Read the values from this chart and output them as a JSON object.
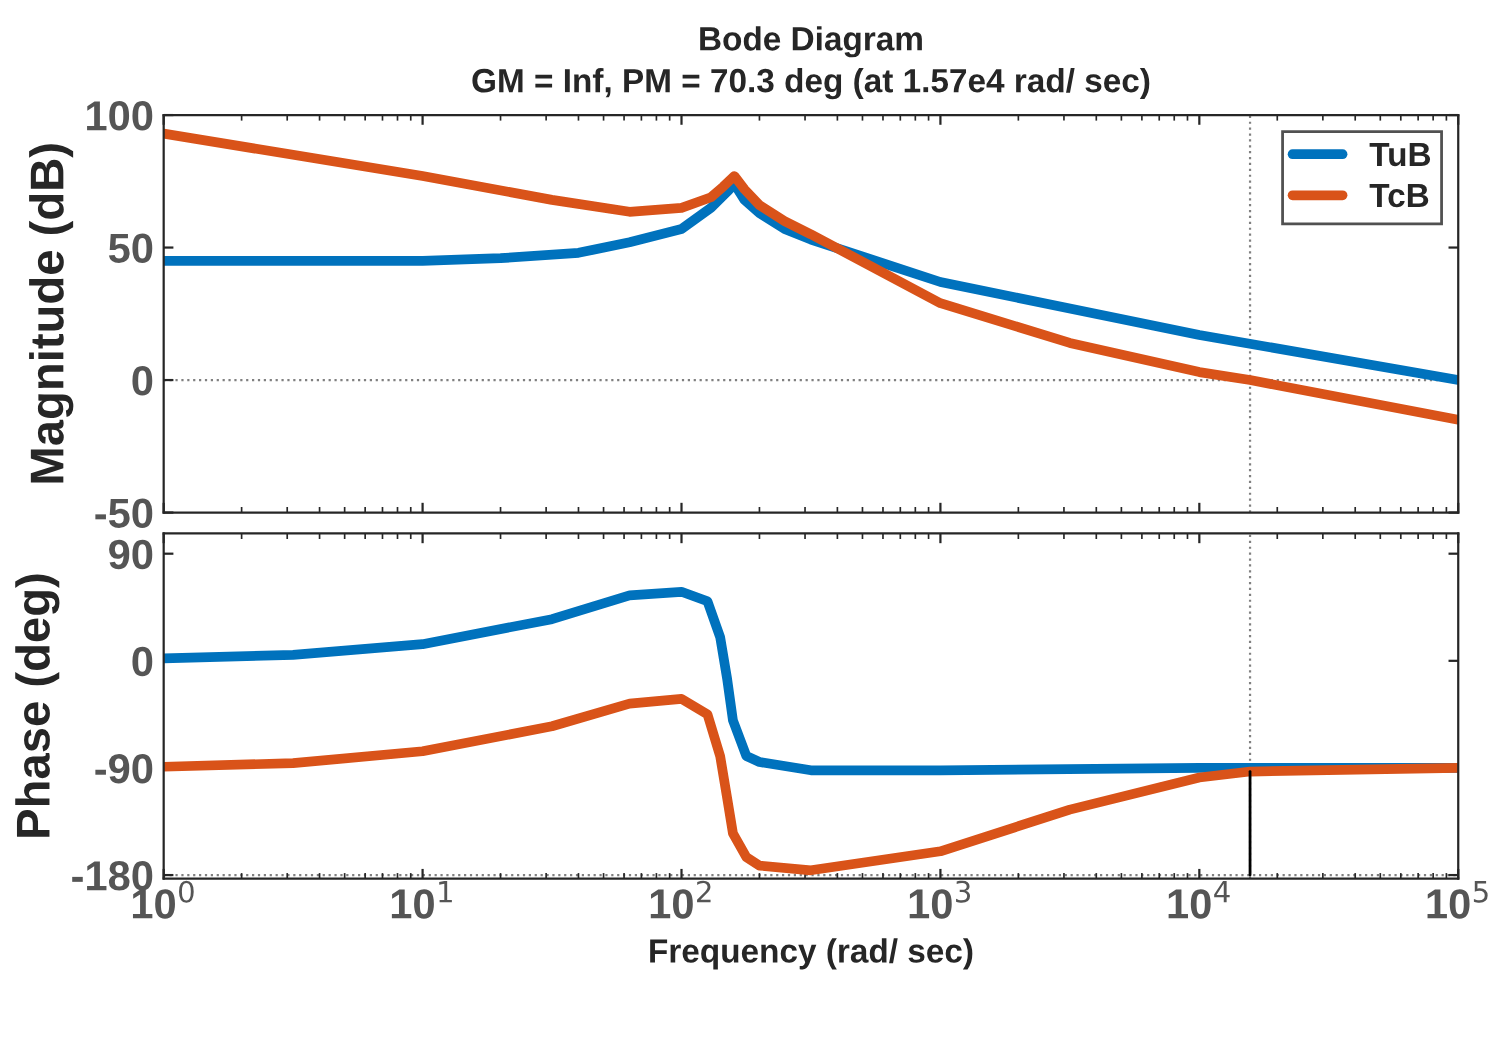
{
  "chart_data": [
    {
      "type": "line",
      "title": "Bode Diagram",
      "subtitle": "GM = Inf, PM = 70.3 deg (at 1.57e4 rad/ sec)",
      "ylabel": "Magnitude (dB)",
      "log": "x",
      "xlim": [
        1,
        100000
      ],
      "ylim": [
        -50,
        100
      ],
      "yticks": [
        -50,
        0,
        50,
        100
      ],
      "tick_labels": "y",
      "legend": "top right",
      "grid": false,
      "line_style": "solid",
      "marker": "none",
      "series": [
        {
          "name": "TuB",
          "color": "#0072bd",
          "x": [
            1,
            3.16,
            10,
            20,
            40,
            63,
            100,
            130,
            150,
            160,
            175,
            200,
            250,
            316,
            1000,
            10000,
            100000
          ],
          "values": [
            45,
            45,
            45,
            46,
            48,
            52,
            57,
            65,
            71,
            74,
            68,
            63,
            57,
            53,
            37,
            17,
            0
          ]
        },
        {
          "name": "TcB",
          "color": "#d95319",
          "x": [
            1,
            3.16,
            10,
            31.6,
            63,
            100,
            130,
            145,
            160,
            175,
            200,
            250,
            316,
            1000,
            3160,
            10000,
            15700,
            100000
          ],
          "values": [
            93,
            85,
            77,
            68,
            63.5,
            65,
            69,
            73,
            77,
            72,
            66,
            60,
            55,
            29,
            14,
            3,
            0,
            -15
          ]
        }
      ],
      "ref_lines": [
        {
          "axis": "y",
          "value": 0,
          "color": "#808080",
          "line_style": "dotted"
        },
        {
          "axis": "x",
          "value": 15700,
          "color": "#808080",
          "line_style": "dotted"
        }
      ]
    },
    {
      "type": "line",
      "xlabel": "Frequency (rad/ sec)",
      "ylabel": "Phase (deg)",
      "log": "x",
      "xlim": [
        1,
        100000
      ],
      "xticks": [
        {
          "value": 1,
          "label": "10$^{0}$"
        },
        {
          "value": 10,
          "label": "10$^{1}$"
        },
        {
          "value": 100,
          "label": "10$^{2}$"
        },
        {
          "value": 1000,
          "label": "10$^{3}$"
        },
        {
          "value": 10000,
          "label": "10$^{4}$"
        },
        {
          "value": 100000,
          "label": "10$^{5}$"
        }
      ],
      "ylim": [
        -183,
        107
      ],
      "yticks": [
        -180,
        -90,
        0,
        90
      ],
      "legend": false,
      "grid": false,
      "line_style": "solid",
      "marker": "none",
      "series": [
        {
          "color": "#0072bd",
          "x": [
            1,
            3.16,
            10,
            31.6,
            63,
            100,
            126,
            141,
            150,
            158,
            178,
            200,
            316,
            1000,
            10000,
            100000
          ],
          "values": [
            2,
            5,
            14,
            35,
            55,
            58,
            50,
            20,
            -15,
            -50,
            -80,
            -85,
            -92,
            -92,
            -90,
            -90
          ]
        },
        {
          "color": "#d95319",
          "x": [
            1,
            3.16,
            10,
            31.6,
            63,
            100,
            126,
            141,
            150,
            158,
            178,
            200,
            316,
            1000,
            3160,
            10000,
            15700,
            100000
          ],
          "values": [
            -89,
            -86,
            -76,
            -55,
            -36,
            -32,
            -45,
            -80,
            -115,
            -145,
            -165,
            -172,
            -176,
            -160,
            -125,
            -98,
            -93,
            -90
          ]
        },
        {
          "color": "#000000",
          "x": [
            15700,
            15700
          ],
          "values": [
            -180,
            -93
          ]
        }
      ],
      "ref_lines": [
        {
          "axis": "x",
          "value": 15700,
          "color": "#808080",
          "line_style": "dotted"
        },
        {
          "axis": "y",
          "value": -180,
          "color": "#808080",
          "line_style": "dotted"
        }
      ]
    }
  ]
}
